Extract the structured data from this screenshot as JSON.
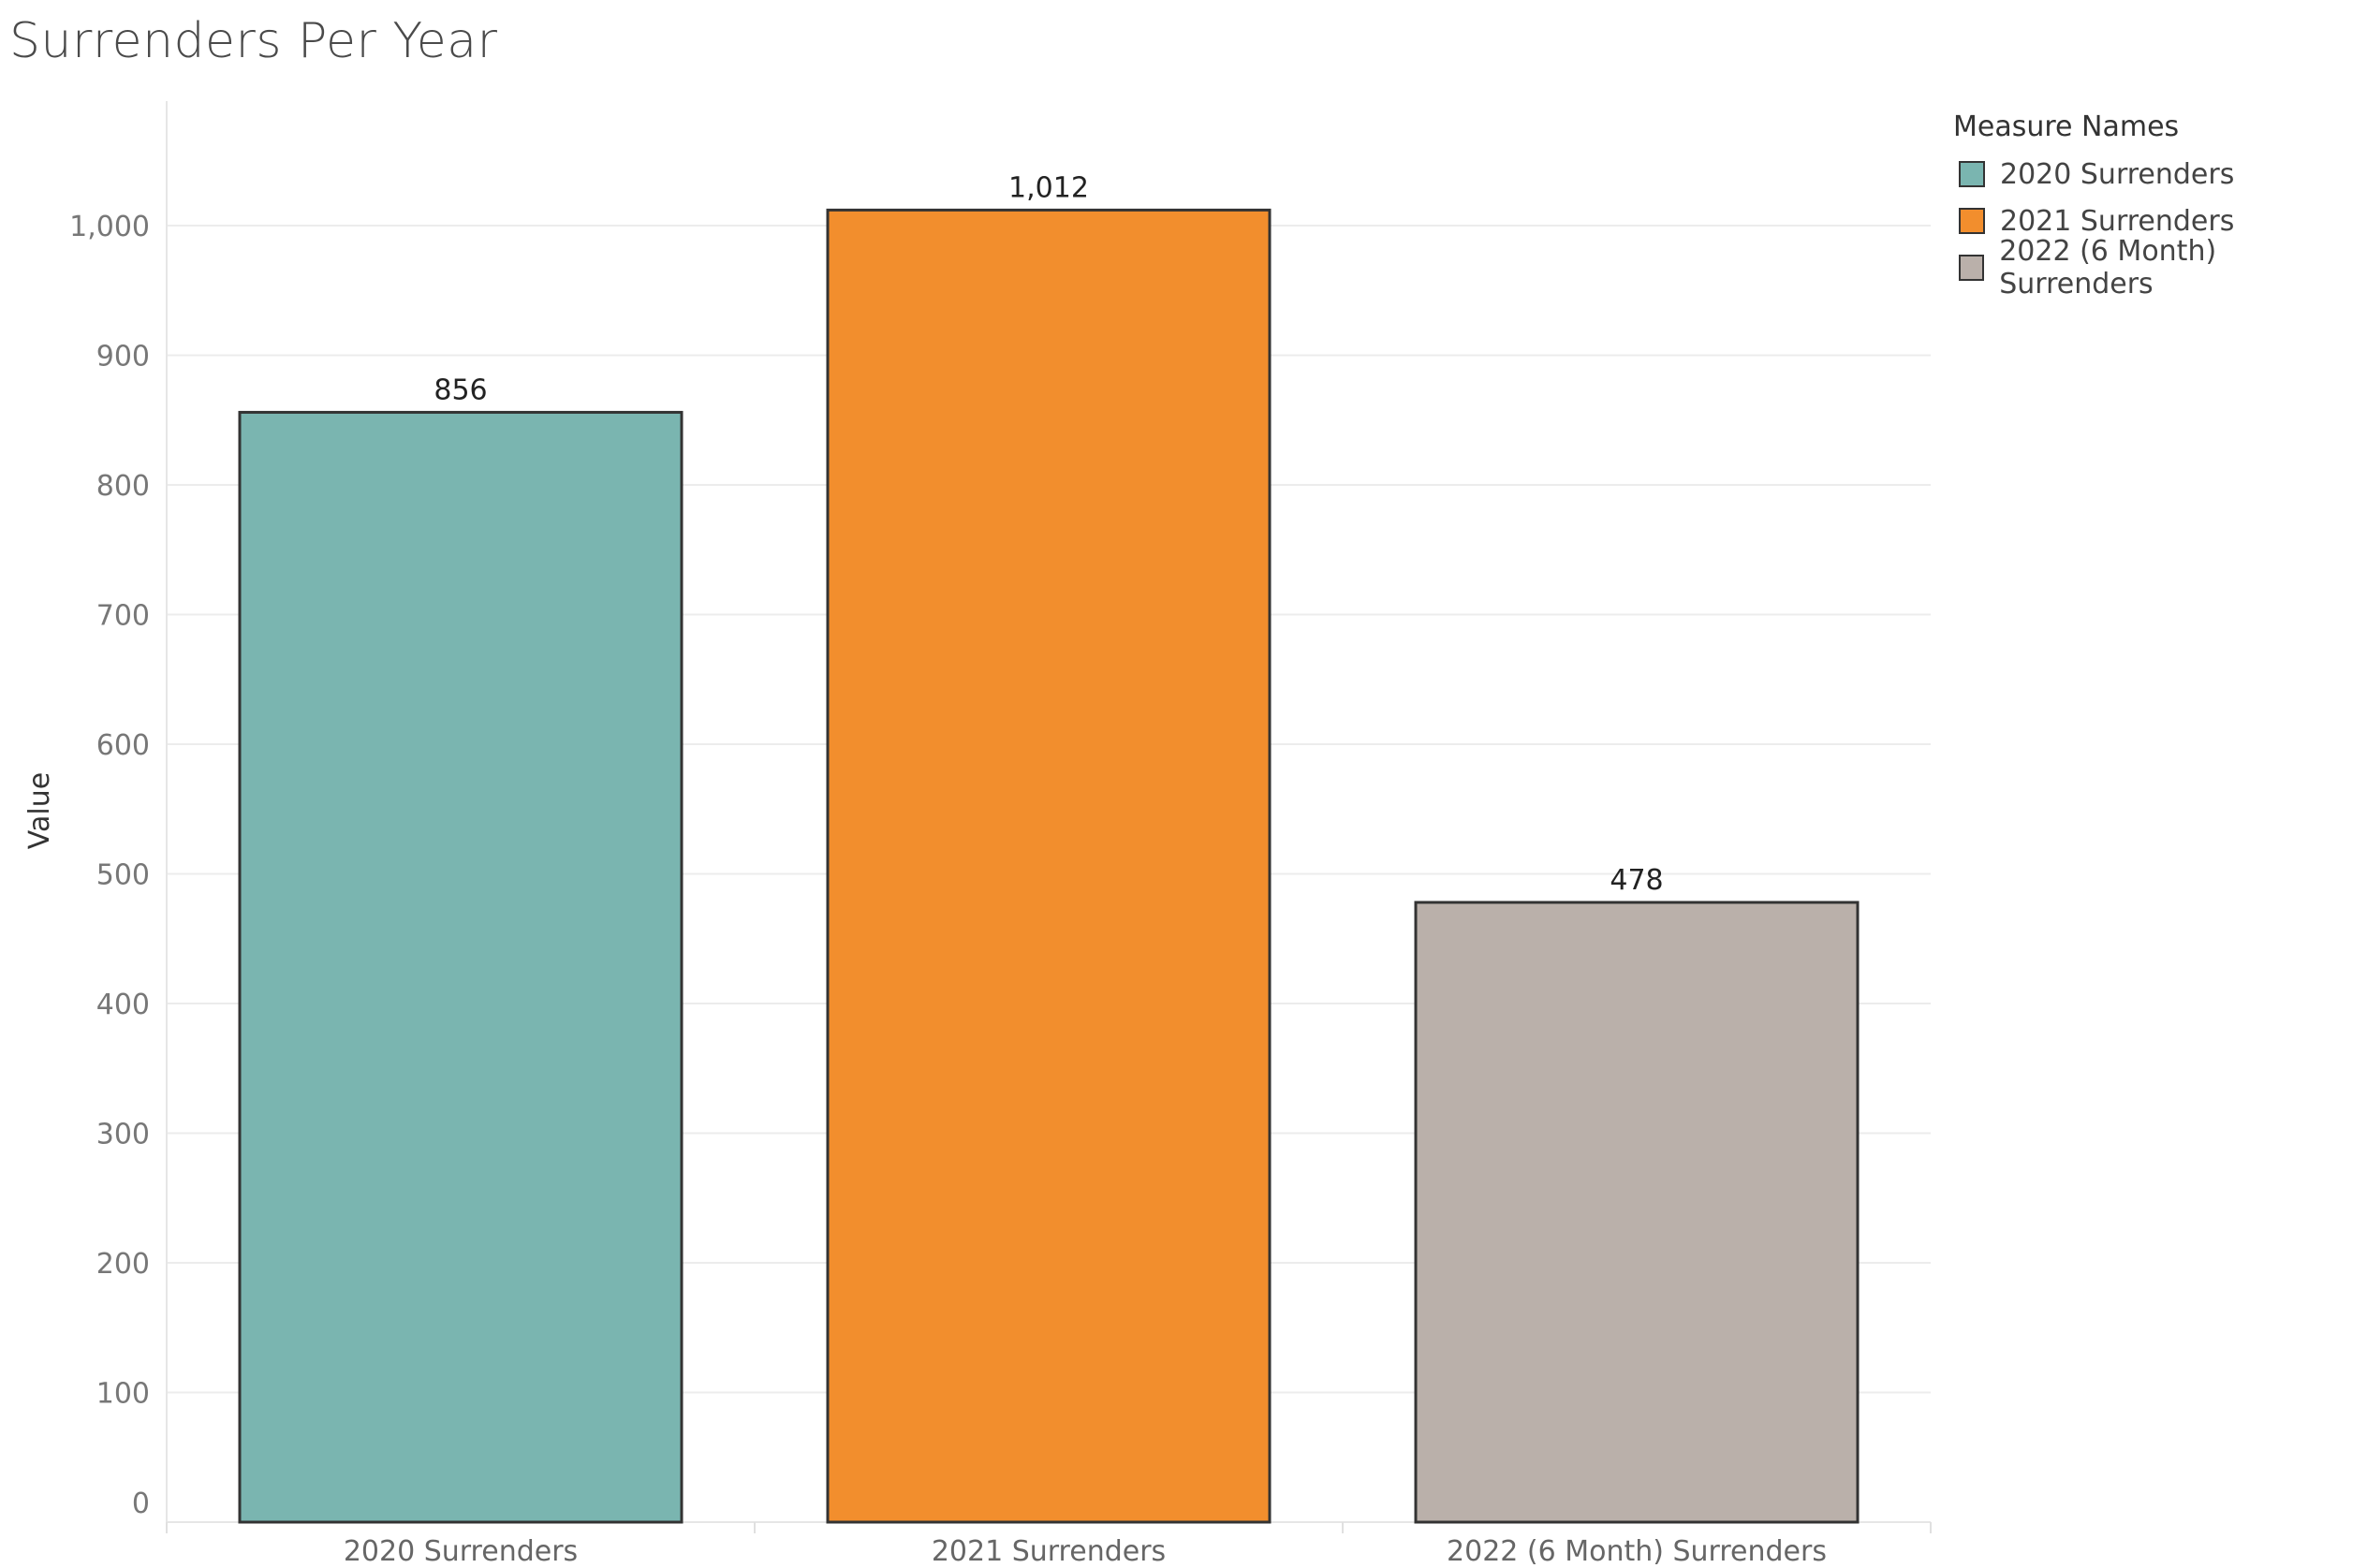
{
  "chart_data": {
    "type": "bar",
    "title": "Surrenders Per Year",
    "ylabel": "Value",
    "xlabel": "",
    "categories": [
      "2020 Surrenders",
      "2021 Surrenders",
      "2022 (6 Month) Surrenders"
    ],
    "values": [
      856,
      1012,
      478
    ],
    "value_labels": [
      "856",
      "1,012",
      "478"
    ],
    "colors": [
      "#7ab5b0",
      "#f28e2d",
      "#bab0aa"
    ],
    "bar_outline_color": "#333333",
    "ylim": [
      0,
      1100
    ],
    "yticks": [
      0,
      100,
      200,
      300,
      400,
      500,
      600,
      700,
      800,
      900,
      1000
    ],
    "ytick_labels": [
      "0",
      "100",
      "200",
      "300",
      "400",
      "500",
      "600",
      "700",
      "800",
      "900",
      "1,000"
    ],
    "grid": true,
    "legend": {
      "title": "Measure Names",
      "placement": "top-right",
      "items": [
        "2020 Surrenders",
        "2021 Surrenders",
        "2022 (6 Month) Surrenders"
      ]
    }
  }
}
